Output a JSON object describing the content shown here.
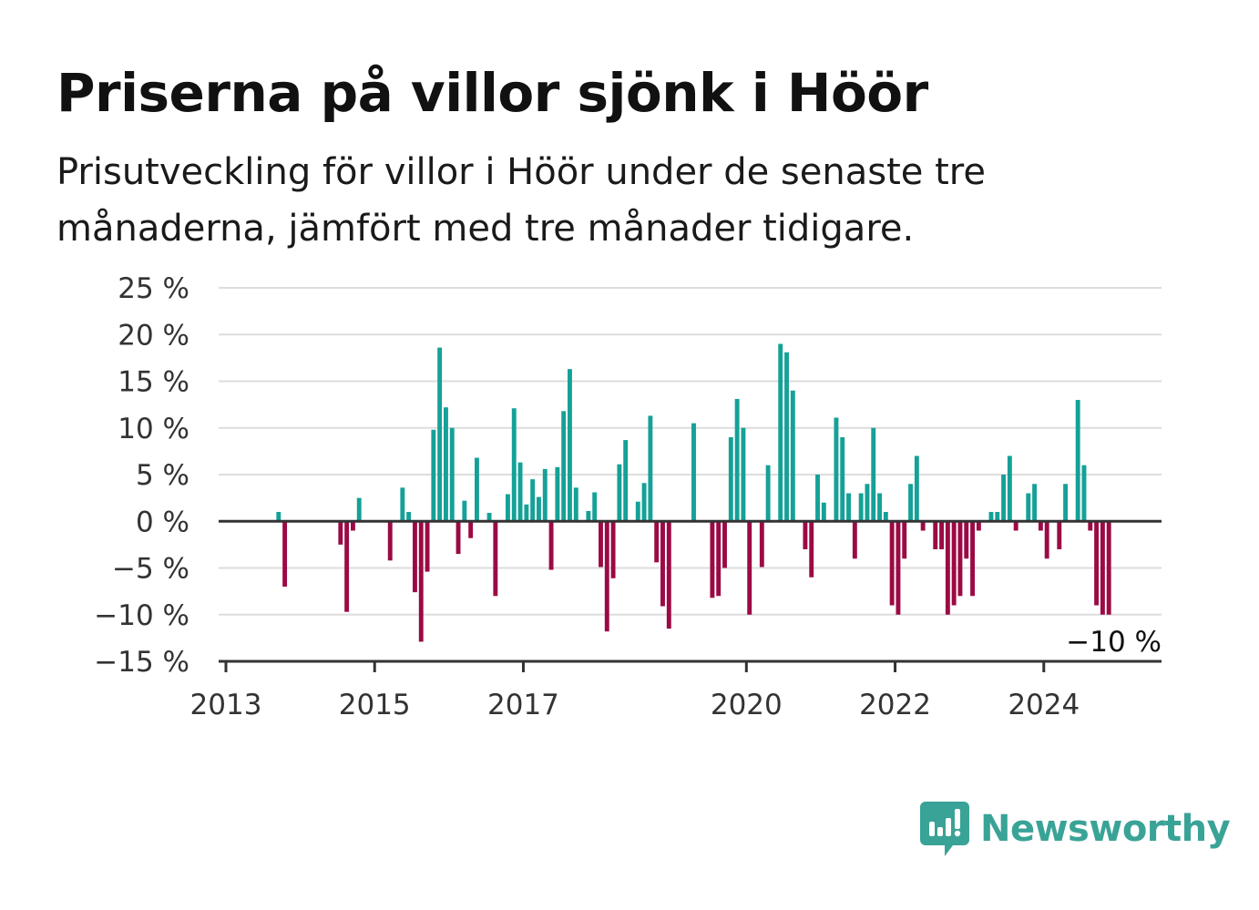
{
  "title": "Priserna på villor sjönk i Höör",
  "subtitle": "Prisutveckling för villor i Höör under de senaste tre månaderna, jämfört med tre månader tidigare.",
  "brand": {
    "name": "Newsworthy",
    "icon": "newsworthy-logo-icon"
  },
  "colors": {
    "positive": "#15a197",
    "negative": "#9b0a45",
    "grid": "#dddddd",
    "axis": "#333333"
  },
  "chart_data": {
    "type": "bar",
    "title": "Priserna på villor sjönk i Höör",
    "xlabel": "",
    "ylabel": "",
    "ylim": [
      -15,
      25
    ],
    "yticks": [
      25,
      20,
      15,
      10,
      5,
      0,
      -5,
      -10,
      -15
    ],
    "ytick_labels": [
      "25 %",
      "20 %",
      "15 %",
      "10 %",
      "5 %",
      "0 %",
      "−5 %",
      "−10 %",
      "−15 %"
    ],
    "xlim": [
      "2013-01",
      "2025-08"
    ],
    "xticks": [
      {
        "date": "2013-01",
        "label": "2013"
      },
      {
        "date": "2015-01",
        "label": "2015"
      },
      {
        "date": "2017-01",
        "label": "2017"
      },
      {
        "date": "2020-01",
        "label": "2020"
      },
      {
        "date": "2022-01",
        "label": "2022"
      },
      {
        "date": "2024-01",
        "label": "2024"
      }
    ],
    "grid": true,
    "annotation": {
      "date": "2025-02",
      "value": -10,
      "label": "−10 %"
    },
    "series": [
      {
        "values": [
          {
            "date": "2013-09",
            "value": 1
          },
          {
            "date": "2013-10",
            "value": -7
          },
          {
            "date": "2014-07",
            "value": -2.5
          },
          {
            "date": "2014-08",
            "value": -9.7
          },
          {
            "date": "2014-09",
            "value": -1
          },
          {
            "date": "2014-10",
            "value": 2.5
          },
          {
            "date": "2015-03",
            "value": -4.2
          },
          {
            "date": "2015-05",
            "value": 3.6
          },
          {
            "date": "2015-06",
            "value": 1
          },
          {
            "date": "2015-07",
            "value": -7.6
          },
          {
            "date": "2015-08",
            "value": -12.9
          },
          {
            "date": "2015-09",
            "value": -5.4
          },
          {
            "date": "2015-10",
            "value": 9.8
          },
          {
            "date": "2015-11",
            "value": 18.6
          },
          {
            "date": "2015-12",
            "value": 12.2
          },
          {
            "date": "2016-01",
            "value": 10
          },
          {
            "date": "2016-02",
            "value": -3.5
          },
          {
            "date": "2016-03",
            "value": 2.2
          },
          {
            "date": "2016-04",
            "value": -1.8
          },
          {
            "date": "2016-05",
            "value": 6.8
          },
          {
            "date": "2016-07",
            "value": 0.9
          },
          {
            "date": "2016-08",
            "value": -8
          },
          {
            "date": "2016-10",
            "value": 2.9
          },
          {
            "date": "2016-11",
            "value": 12.1
          },
          {
            "date": "2016-12",
            "value": 6.3
          },
          {
            "date": "2017-01",
            "value": 1.8
          },
          {
            "date": "2017-02",
            "value": 4.5
          },
          {
            "date": "2017-03",
            "value": 2.6
          },
          {
            "date": "2017-04",
            "value": 5.6
          },
          {
            "date": "2017-05",
            "value": -5.2
          },
          {
            "date": "2017-06",
            "value": 5.8
          },
          {
            "date": "2017-07",
            "value": 11.8
          },
          {
            "date": "2017-08",
            "value": 16.3
          },
          {
            "date": "2017-09",
            "value": 3.6
          },
          {
            "date": "2017-11",
            "value": 1.1
          },
          {
            "date": "2017-12",
            "value": 3.1
          },
          {
            "date": "2018-01",
            "value": -4.9
          },
          {
            "date": "2018-02",
            "value": -11.8
          },
          {
            "date": "2018-03",
            "value": -6.1
          },
          {
            "date": "2018-04",
            "value": 6.1
          },
          {
            "date": "2018-05",
            "value": 8.7
          },
          {
            "date": "2018-07",
            "value": 2.1
          },
          {
            "date": "2018-08",
            "value": 4.1
          },
          {
            "date": "2018-09",
            "value": 11.3
          },
          {
            "date": "2018-10",
            "value": -4.4
          },
          {
            "date": "2018-11",
            "value": -9.1
          },
          {
            "date": "2018-12",
            "value": -11.5
          },
          {
            "date": "2019-04",
            "value": 10.5
          },
          {
            "date": "2019-07",
            "value": -8.2
          },
          {
            "date": "2019-08",
            "value": -8
          },
          {
            "date": "2019-09",
            "value": -5
          },
          {
            "date": "2019-10",
            "value": 9
          },
          {
            "date": "2019-11",
            "value": 13.1
          },
          {
            "date": "2019-12",
            "value": 10
          },
          {
            "date": "2020-01",
            "value": -10
          },
          {
            "date": "2020-03",
            "value": -4.9
          },
          {
            "date": "2020-04",
            "value": 6
          },
          {
            "date": "2020-06",
            "value": 19
          },
          {
            "date": "2020-07",
            "value": 18.1
          },
          {
            "date": "2020-08",
            "value": 14
          },
          {
            "date": "2020-10",
            "value": -3
          },
          {
            "date": "2020-11",
            "value": -6
          },
          {
            "date": "2020-12",
            "value": 5
          },
          {
            "date": "2021-01",
            "value": 2
          },
          {
            "date": "2021-03",
            "value": 11.1
          },
          {
            "date": "2021-04",
            "value": 9
          },
          {
            "date": "2021-05",
            "value": 3
          },
          {
            "date": "2021-06",
            "value": -4
          },
          {
            "date": "2021-07",
            "value": 3
          },
          {
            "date": "2021-08",
            "value": 4
          },
          {
            "date": "2021-09",
            "value": 10
          },
          {
            "date": "2021-10",
            "value": 3
          },
          {
            "date": "2021-11",
            "value": 1
          },
          {
            "date": "2021-12",
            "value": -9
          },
          {
            "date": "2022-01",
            "value": -10
          },
          {
            "date": "2022-02",
            "value": -4
          },
          {
            "date": "2022-03",
            "value": 4
          },
          {
            "date": "2022-04",
            "value": 7
          },
          {
            "date": "2022-05",
            "value": -1
          },
          {
            "date": "2022-07",
            "value": -3
          },
          {
            "date": "2022-08",
            "value": -3
          },
          {
            "date": "2022-09",
            "value": -10
          },
          {
            "date": "2022-10",
            "value": -9
          },
          {
            "date": "2022-11",
            "value": -8
          },
          {
            "date": "2022-12",
            "value": -4
          },
          {
            "date": "2023-01",
            "value": -8
          },
          {
            "date": "2023-02",
            "value": -1
          },
          {
            "date": "2023-04",
            "value": 1
          },
          {
            "date": "2023-05",
            "value": 1
          },
          {
            "date": "2023-06",
            "value": 5
          },
          {
            "date": "2023-07",
            "value": 7
          },
          {
            "date": "2023-08",
            "value": -1
          },
          {
            "date": "2023-10",
            "value": 3
          },
          {
            "date": "2023-11",
            "value": 4
          },
          {
            "date": "2023-12",
            "value": -1
          },
          {
            "date": "2024-01",
            "value": -4
          },
          {
            "date": "2024-03",
            "value": -3
          },
          {
            "date": "2024-04",
            "value": 4
          },
          {
            "date": "2024-06",
            "value": 13
          },
          {
            "date": "2024-07",
            "value": 6
          },
          {
            "date": "2024-08",
            "value": -1
          },
          {
            "date": "2024-09",
            "value": -9
          },
          {
            "date": "2024-10",
            "value": -10
          },
          {
            "date": "2024-11",
            "value": -10
          }
        ]
      }
    ]
  }
}
